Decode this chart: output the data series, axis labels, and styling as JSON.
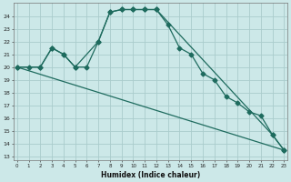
{
  "xlabel": "Humidex (Indice chaleur)",
  "bg_color": "#cce8e8",
  "grid_color": "#aacccc",
  "line_color": "#1e6b5e",
  "line1_x": [
    0,
    1,
    2,
    3,
    4,
    5,
    6,
    7,
    8,
    9,
    10,
    11,
    12,
    13,
    14,
    15,
    16,
    17,
    18,
    19,
    20,
    21,
    22,
    23
  ],
  "line1_y": [
    20.0,
    20.0,
    20.0,
    21.5,
    21.0,
    20.0,
    20.0,
    22.0,
    24.3,
    24.5,
    24.5,
    24.5,
    24.5,
    23.3,
    21.5,
    21.0,
    19.5,
    19.0,
    17.7,
    17.2,
    16.5,
    16.2,
    14.7,
    13.5
  ],
  "line2_x": [
    0,
    23
  ],
  "line2_y": [
    20.0,
    13.5
  ],
  "line3_x": [
    0,
    2,
    3,
    4,
    5,
    7,
    8,
    9,
    10,
    11,
    12,
    22,
    23
  ],
  "line3_y": [
    20.0,
    20.0,
    21.5,
    21.0,
    20.0,
    22.0,
    24.3,
    24.5,
    24.5,
    24.5,
    24.5,
    14.7,
    13.5
  ],
  "ylim": [
    13.0,
    24.5
  ],
  "xlim": [
    0,
    23
  ],
  "yticks": [
    13,
    14,
    15,
    16,
    17,
    18,
    19,
    20,
    21,
    22,
    23,
    24
  ],
  "xticks": [
    0,
    1,
    2,
    3,
    4,
    5,
    6,
    7,
    8,
    9,
    10,
    11,
    12,
    13,
    14,
    15,
    16,
    17,
    18,
    19,
    20,
    21,
    22,
    23
  ]
}
